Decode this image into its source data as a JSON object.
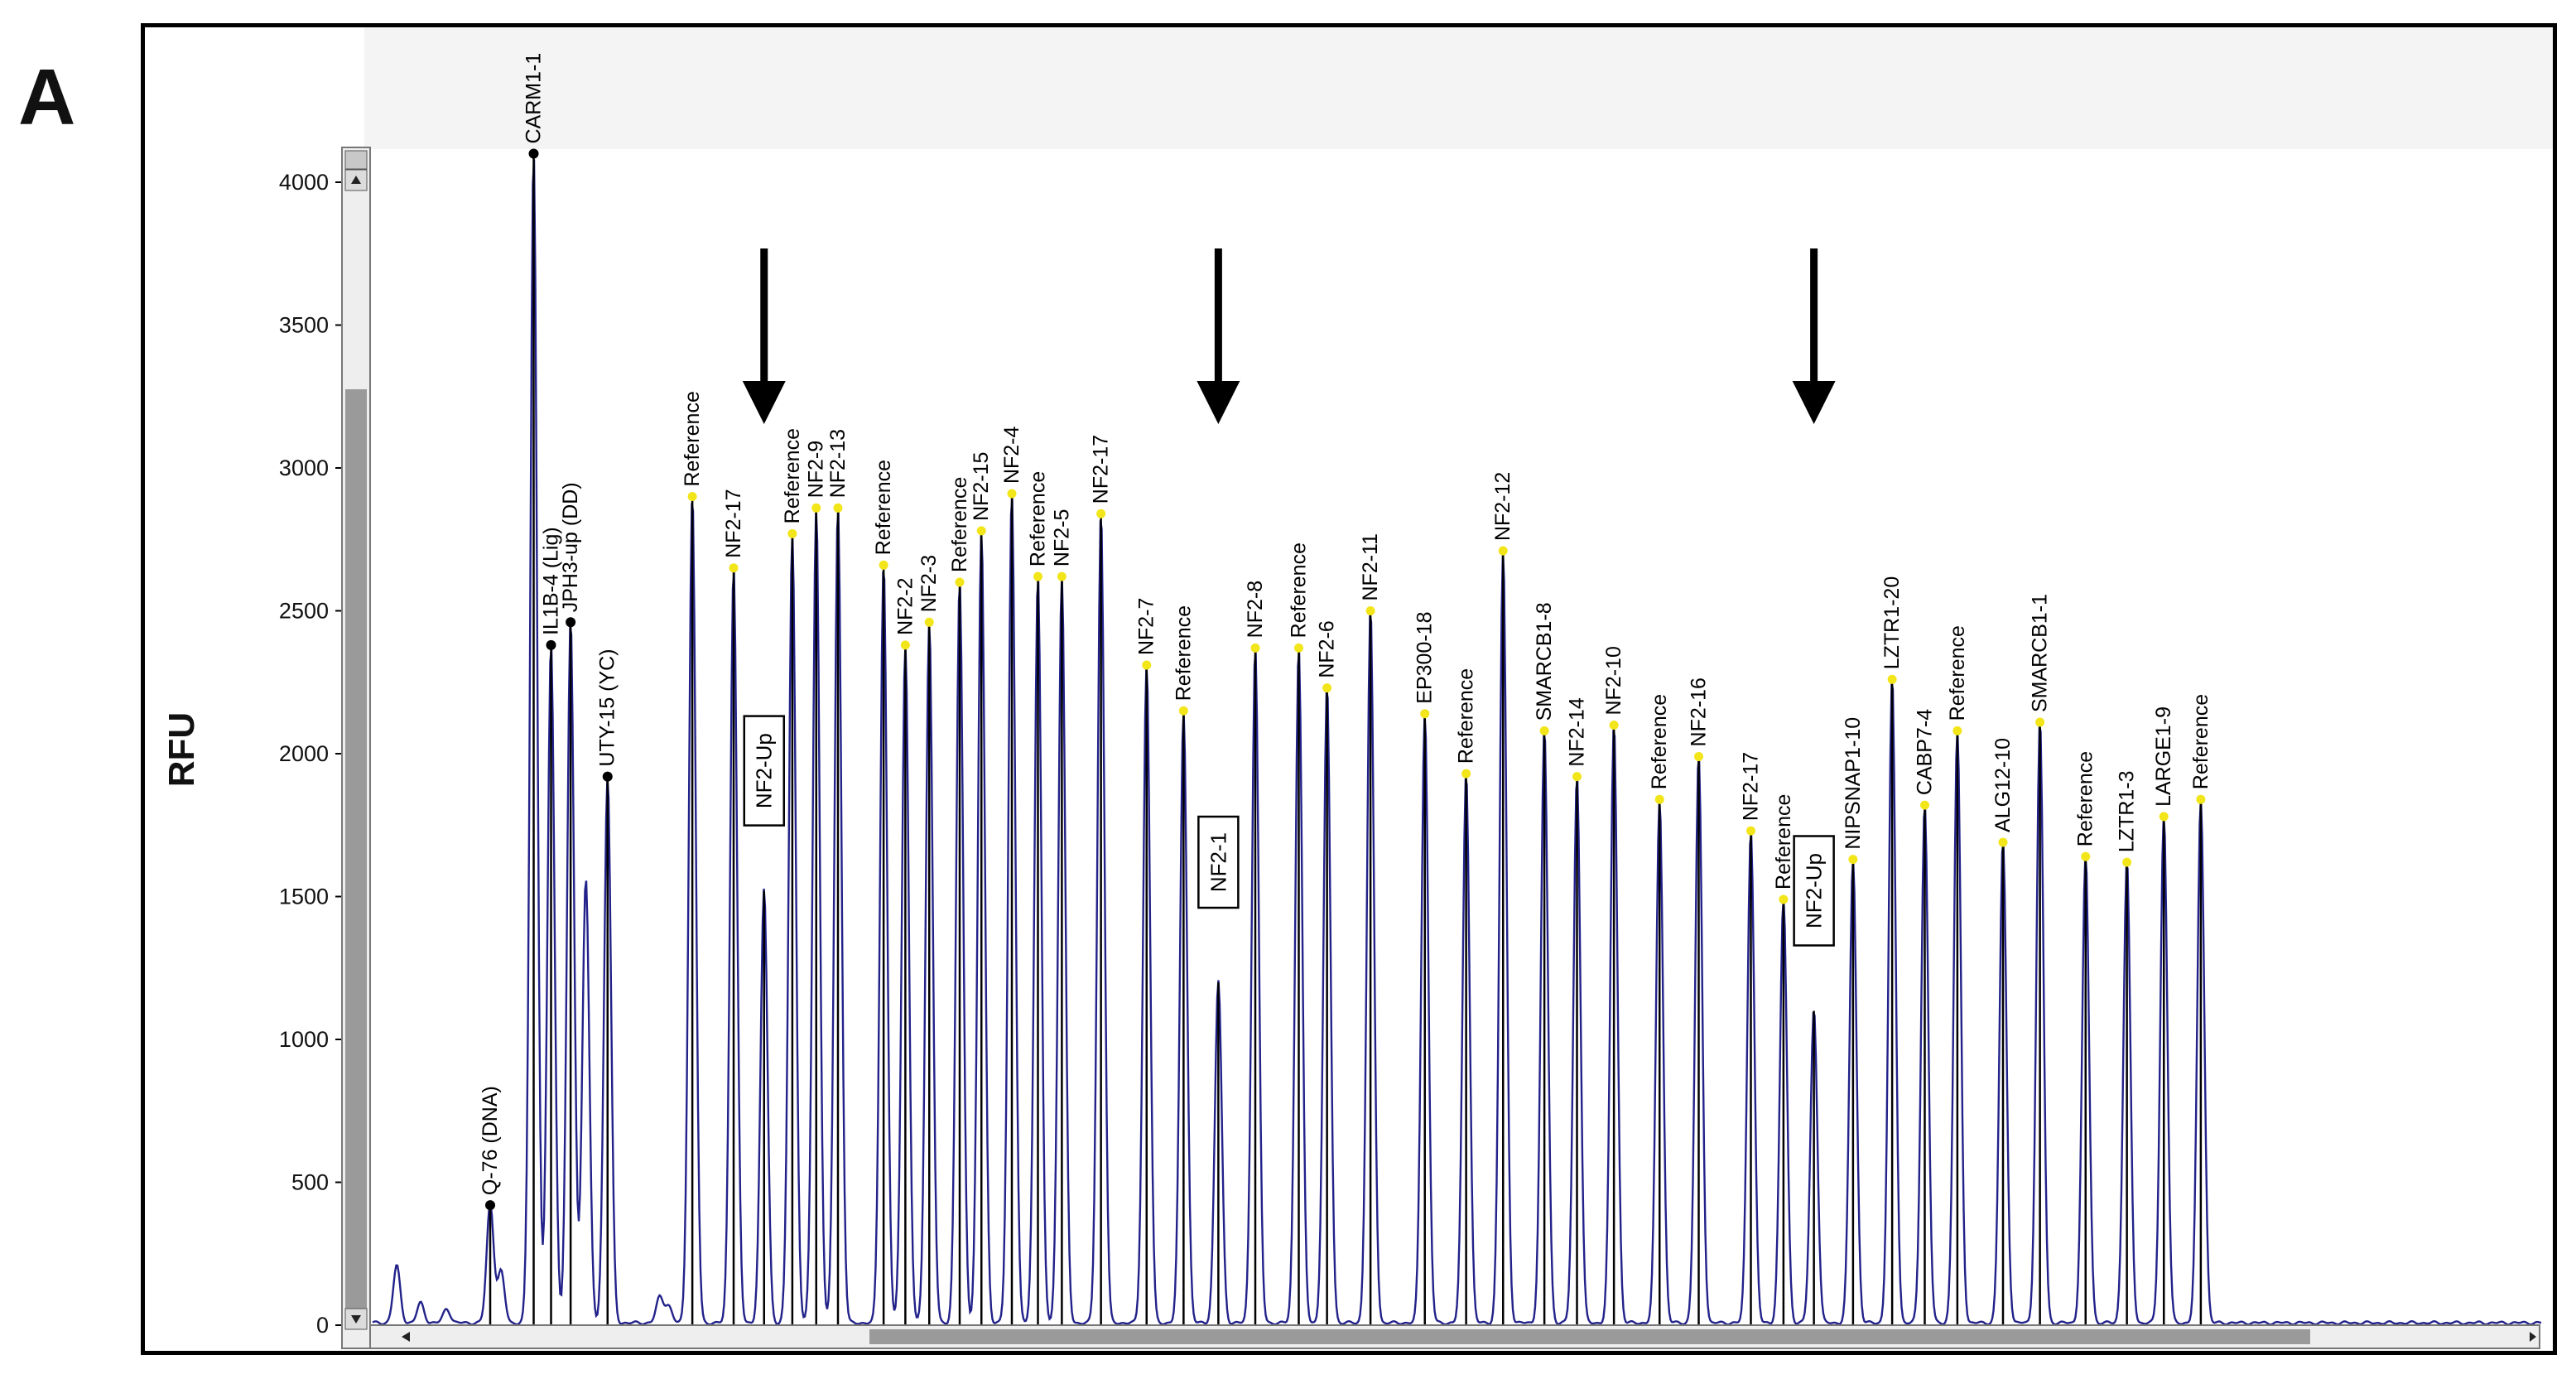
{
  "panel_label": "A",
  "colors": {
    "trace": "#22228a",
    "stem": "#000000",
    "marker_yellow": "#f2e51a",
    "marker_black": "#000000"
  },
  "chart_data": {
    "type": "line",
    "title": "",
    "xlabel": "",
    "ylabel": "RFU",
    "ylim": [
      0,
      4000
    ],
    "yticks": [
      0,
      500,
      1000,
      1500,
      2000,
      2500,
      3000,
      3500,
      4000
    ],
    "x_units": "relative position (0-100)",
    "xlim": [
      0,
      100
    ],
    "peaks": [
      {
        "label": "Q-76 (DNA)",
        "x": 5.6,
        "y": 420,
        "marker": "black"
      },
      {
        "label": "CARM1-1",
        "x": 7.6,
        "y": 4100,
        "marker": "black"
      },
      {
        "label": "IL1B-4 (Lig)",
        "x": 8.4,
        "y": 2380,
        "marker": "black"
      },
      {
        "label": "JPH3-up (DD)",
        "x": 9.3,
        "y": 2460,
        "marker": "black"
      },
      {
        "label": "UTY-15 (YC)",
        "x": 11.0,
        "y": 1920,
        "marker": "black"
      },
      {
        "label": "Reference",
        "x": 14.9,
        "y": 2900,
        "marker": "yellow"
      },
      {
        "label": "NF2-17",
        "x": 16.8,
        "y": 2650,
        "marker": "yellow"
      },
      {
        "label": "NF2-Up",
        "x": 18.2,
        "y": 1520,
        "marker": "none",
        "boxed": true
      },
      {
        "label": "Reference",
        "x": 19.5,
        "y": 2770,
        "marker": "yellow"
      },
      {
        "label": "NF2-9",
        "x": 20.6,
        "y": 2860,
        "marker": "yellow"
      },
      {
        "label": "NF2-13",
        "x": 21.6,
        "y": 2860,
        "marker": "yellow"
      },
      {
        "label": "Reference",
        "x": 23.7,
        "y": 2660,
        "marker": "yellow"
      },
      {
        "label": "NF2-2",
        "x": 24.7,
        "y": 2380,
        "marker": "yellow"
      },
      {
        "label": "NF2-3",
        "x": 25.8,
        "y": 2460,
        "marker": "yellow"
      },
      {
        "label": "Reference",
        "x": 27.2,
        "y": 2600,
        "marker": "yellow"
      },
      {
        "label": "NF2-15",
        "x": 28.2,
        "y": 2780,
        "marker": "yellow"
      },
      {
        "label": "NF2-4",
        "x": 29.6,
        "y": 2910,
        "marker": "yellow"
      },
      {
        "label": "Reference",
        "x": 30.8,
        "y": 2620,
        "marker": "yellow"
      },
      {
        "label": "NF2-5",
        "x": 31.9,
        "y": 2620,
        "marker": "yellow"
      },
      {
        "label": "NF2-17",
        "x": 33.7,
        "y": 2840,
        "marker": "yellow"
      },
      {
        "label": "NF2-7",
        "x": 35.8,
        "y": 2310,
        "marker": "yellow"
      },
      {
        "label": "Reference",
        "x": 37.5,
        "y": 2150,
        "marker": "yellow"
      },
      {
        "label": "NF2-1",
        "x": 39.1,
        "y": 1200,
        "marker": "none",
        "boxed": true
      },
      {
        "label": "NF2-8",
        "x": 40.8,
        "y": 2370,
        "marker": "yellow"
      },
      {
        "label": "Reference",
        "x": 42.8,
        "y": 2370,
        "marker": "yellow"
      },
      {
        "label": "NF2-6",
        "x": 44.1,
        "y": 2230,
        "marker": "yellow"
      },
      {
        "label": "NF2-11",
        "x": 46.1,
        "y": 2500,
        "marker": "yellow"
      },
      {
        "label": "EP300-18",
        "x": 48.6,
        "y": 2140,
        "marker": "yellow"
      },
      {
        "label": "Reference",
        "x": 50.5,
        "y": 1930,
        "marker": "yellow"
      },
      {
        "label": "NF2-12",
        "x": 52.2,
        "y": 2710,
        "marker": "yellow"
      },
      {
        "label": "SMARCB1-8",
        "x": 54.1,
        "y": 2080,
        "marker": "yellow"
      },
      {
        "label": "NF2-14",
        "x": 55.6,
        "y": 1920,
        "marker": "yellow"
      },
      {
        "label": "NF2-10",
        "x": 57.3,
        "y": 2100,
        "marker": "yellow"
      },
      {
        "label": "Reference",
        "x": 59.4,
        "y": 1840,
        "marker": "yellow"
      },
      {
        "label": "NF2-16",
        "x": 61.2,
        "y": 1990,
        "marker": "yellow"
      },
      {
        "label": "NF2-17",
        "x": 63.6,
        "y": 1730,
        "marker": "yellow"
      },
      {
        "label": "Reference",
        "x": 65.1,
        "y": 1490,
        "marker": "yellow"
      },
      {
        "label": "NF2-Up",
        "x": 66.5,
        "y": 1100,
        "marker": "none",
        "boxed": true
      },
      {
        "label": "NIPSNAP1-10",
        "x": 68.3,
        "y": 1630,
        "marker": "yellow"
      },
      {
        "label": "LZTR1-20",
        "x": 70.1,
        "y": 2260,
        "marker": "yellow"
      },
      {
        "label": "CABP7-4",
        "x": 71.6,
        "y": 1820,
        "marker": "yellow"
      },
      {
        "label": "Reference",
        "x": 73.1,
        "y": 2080,
        "marker": "yellow"
      },
      {
        "label": "ALG12-10",
        "x": 75.2,
        "y": 1690,
        "marker": "yellow"
      },
      {
        "label": "SMARCB1-1",
        "x": 76.9,
        "y": 2110,
        "marker": "yellow"
      },
      {
        "label": "Reference",
        "x": 79.0,
        "y": 1640,
        "marker": "yellow"
      },
      {
        "label": "LZTR1-3",
        "x": 80.9,
        "y": 1620,
        "marker": "yellow"
      },
      {
        "label": "LARGE1-9",
        "x": 82.6,
        "y": 1780,
        "marker": "yellow"
      },
      {
        "label": "Reference",
        "x": 84.3,
        "y": 1840,
        "marker": "yellow"
      }
    ],
    "unlabeled_peaks": [
      {
        "x": 1.3,
        "y": 200
      },
      {
        "x": 2.4,
        "y": 70
      },
      {
        "x": 3.6,
        "y": 50
      },
      {
        "x": 6.1,
        "y": 180
      },
      {
        "x": 10.0,
        "y": 1560
      },
      {
        "x": 13.4,
        "y": 90
      },
      {
        "x": 13.8,
        "y": 60
      }
    ],
    "arrows": [
      {
        "target_label": "NF2-Up",
        "x": 18.2
      },
      {
        "target_label": "NF2-1",
        "x": 39.1
      },
      {
        "target_label": "NF2-Up",
        "x": 66.5
      }
    ]
  }
}
